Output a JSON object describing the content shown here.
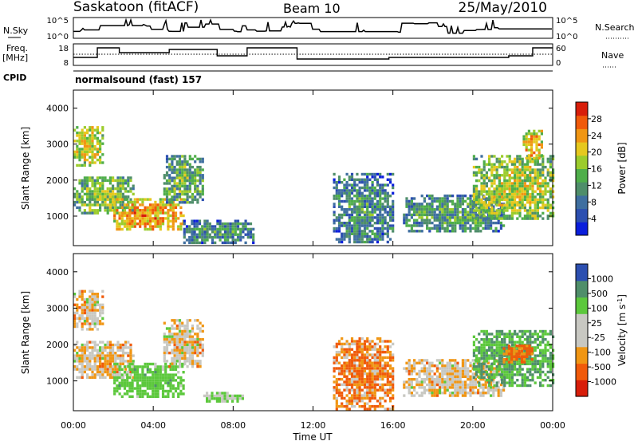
{
  "header": {
    "station": "Saskatoon (fitACF)",
    "beam": "Beam 10",
    "date": "25/May/2010"
  },
  "noise_panel": {
    "left_label": "N.Sky",
    "right_label": "N.Search",
    "left_ticks": [
      "10^5",
      "10^0"
    ],
    "right_ticks": [
      "10^5",
      "10^0"
    ]
  },
  "freq_panel": {
    "left_label_line1": "Freq.",
    "left_label_line2": "[MHz]",
    "right_label": "Nave",
    "left_ticks": [
      "18",
      "8"
    ],
    "right_ticks": [
      "60",
      "0"
    ]
  },
  "cpid_panel": {
    "label": "CPID",
    "text": "normalsound (fast) 157"
  },
  "x_axis": {
    "title": "Time UT",
    "ticks": [
      "00:00",
      "04:00",
      "08:00",
      "12:00",
      "16:00",
      "20:00",
      "00:00"
    ]
  },
  "colors": {
    "power_scale": [
      "#0a1edc",
      "#2c4fb0",
      "#3f6fa0",
      "#4f8e6a",
      "#4fae4a",
      "#9ccc2c",
      "#e6c81e",
      "#f09614",
      "#f05a0a",
      "#d81e0a"
    ],
    "velocity_scale": [
      "#d81e0a",
      "#f05a0a",
      "#f09614",
      "#c8c8c2",
      "#c8c8c2",
      "#5cc83c",
      "#4f8e6a",
      "#2c4fb0"
    ]
  },
  "chart_data": [
    {
      "type": "heatmap",
      "title": "",
      "ylabel": "Slant Range [km]",
      "xlabel": "",
      "ylim": [
        180,
        4500
      ],
      "yticks": [
        "4000",
        "3000",
        "2000",
        "1000"
      ],
      "x_range_hours": [
        0,
        24
      ],
      "colorbar": {
        "label": "Power [dB]",
        "ticks": [
          "28",
          "24",
          "20",
          "16",
          "12",
          "8",
          "4"
        ],
        "range": [
          0,
          30
        ]
      },
      "echo_regions": [
        {
          "t_start": 0.0,
          "t_end": 1.5,
          "r_low": 2400,
          "r_high": 3500,
          "level": 20
        },
        {
          "t_start": 0.0,
          "t_end": 3.0,
          "r_low": 1100,
          "r_high": 2100,
          "level": 16
        },
        {
          "t_start": 2.0,
          "t_end": 5.5,
          "r_low": 600,
          "r_high": 1500,
          "level": 24
        },
        {
          "t_start": 4.5,
          "t_end": 6.5,
          "r_low": 1400,
          "r_high": 2700,
          "level": 14
        },
        {
          "t_start": 5.5,
          "t_end": 9.0,
          "r_low": 250,
          "r_high": 900,
          "level": 10
        },
        {
          "t_start": 13.0,
          "t_end": 16.0,
          "r_low": 250,
          "r_high": 2200,
          "level": 10
        },
        {
          "t_start": 16.5,
          "t_end": 21.5,
          "r_low": 600,
          "r_high": 1600,
          "level": 12
        },
        {
          "t_start": 20.0,
          "t_end": 24.0,
          "r_low": 900,
          "r_high": 2700,
          "level": 18
        },
        {
          "t_start": 22.5,
          "t_end": 23.5,
          "r_low": 2600,
          "r_high": 3400,
          "level": 22
        }
      ]
    },
    {
      "type": "heatmap",
      "title": "",
      "ylabel": "Slant Range [km]",
      "xlabel": "Time UT",
      "ylim": [
        180,
        4500
      ],
      "yticks": [
        "4000",
        "3000",
        "2000",
        "1000"
      ],
      "x_range_hours": [
        0,
        24
      ],
      "colorbar": {
        "label": "Velocity [m s^-1]",
        "ticks": [
          "1000",
          "500",
          "100",
          "25",
          "-25",
          "-100",
          "-500",
          "-1000"
        ],
        "range": [
          -1000,
          1000
        ]
      },
      "echo_regions": [
        {
          "t_start": 0.0,
          "t_end": 1.5,
          "r_low": 2400,
          "r_high": 3500,
          "level": 0
        },
        {
          "t_start": 0.0,
          "t_end": 3.0,
          "r_low": 1100,
          "r_high": 2100,
          "level": 0
        },
        {
          "t_start": 2.0,
          "t_end": 5.5,
          "r_low": 600,
          "r_high": 1500,
          "level": 200
        },
        {
          "t_start": 4.5,
          "t_end": 6.5,
          "r_low": 1400,
          "r_high": 2700,
          "level": 0
        },
        {
          "t_start": 6.5,
          "t_end": 8.5,
          "r_low": 450,
          "r_high": 700,
          "level": 100
        },
        {
          "t_start": 13.0,
          "t_end": 16.0,
          "r_low": 250,
          "r_high": 2200,
          "level": -100
        },
        {
          "t_start": 16.5,
          "t_end": 21.5,
          "r_low": 600,
          "r_high": 1600,
          "level": 0
        },
        {
          "t_start": 20.0,
          "t_end": 24.0,
          "r_low": 900,
          "r_high": 2400,
          "level": 300
        },
        {
          "t_start": 21.5,
          "t_end": 23.0,
          "r_low": 1500,
          "r_high": 2000,
          "level": -150
        }
      ]
    }
  ]
}
